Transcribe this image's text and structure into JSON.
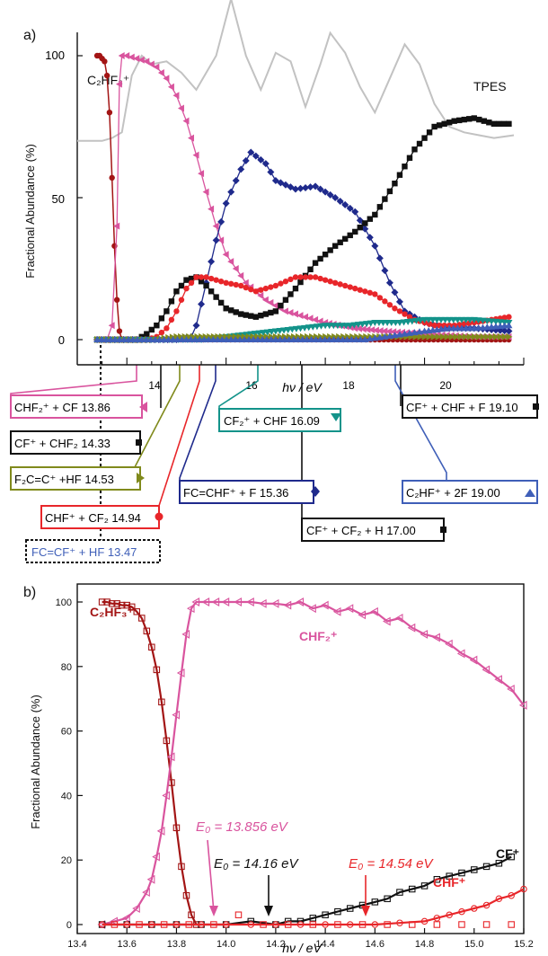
{
  "colors": {
    "c2hf3": "#a31515",
    "chf2": "#d9549e",
    "fc_chf": "#1f2a8c",
    "cf": "#111111",
    "chf": "#e8262a",
    "cf2_chf": "#13938a",
    "f2c": "#808a1c",
    "fccf": "#3f5fb8",
    "tpes": "#c2c2c2"
  },
  "panel_a": {
    "label": "a)",
    "ylabel": "Fractional Abundance  (%)",
    "xlabel": "hν / eV",
    "tpes_label": "TPES",
    "parent_label": "C₂HF₃⁺",
    "y_ticks": [
      "0",
      "50",
      "100"
    ],
    "x_ticks": [
      "14",
      "16",
      "18",
      "20"
    ],
    "channels": [
      {
        "text": "CHF₂⁺ + CF  13.86",
        "marker": "left-triangle",
        "color": "#d9549e"
      },
      {
        "text": "CF⁺ + CHF₂  14.33",
        "marker": "square",
        "color": "#111111"
      },
      {
        "text": "F₂C=C⁺ +HF  14.53",
        "marker": "right-triangle",
        "color": "#808a1c"
      },
      {
        "text": "CHF⁺ + CF₂  14.94",
        "marker": "circle",
        "color": "#e8262a"
      },
      {
        "text": "FC=CF⁺ + HF  13.47",
        "marker": "",
        "color": "#3f5fb8"
      },
      {
        "text": "CF₂⁺ + CHF  16.09",
        "marker": "down-triangle",
        "color": "#13938a"
      },
      {
        "text": "FC=CHF⁺ + F  15.36",
        "marker": "diamond",
        "color": "#1f2a8c"
      },
      {
        "text": "CF⁺ + CF₂ + H  17.00",
        "marker": "square",
        "color": "#111111"
      },
      {
        "text": "CF⁺ + CHF + F  19.10",
        "marker": "square",
        "color": "#111111"
      },
      {
        "text": "C₂HF⁺ + 2F  19.00",
        "marker": "up-triangle",
        "color": "#3f5fb8"
      }
    ]
  },
  "panel_b": {
    "label": "b)",
    "ylabel": "Fractional Abundance  (%)",
    "xlabel": "hν / eV",
    "y_ticks": [
      "0",
      "20",
      "40",
      "60",
      "80",
      "100"
    ],
    "x_ticks": [
      "13.4",
      "13.6",
      "13.8",
      "14.0",
      "14.2",
      "14.4",
      "14.6",
      "14.8",
      "15.0",
      "15.2"
    ],
    "series_labels": {
      "c2hf3": "C₂HF₃⁺",
      "chf2": "CHF₂⁺",
      "cf": "CF⁺",
      "chf": "CHF⁺"
    },
    "e0_chf2": "E₀ = 13.856 eV",
    "e0_cf": "E₀ = 14.16 eV",
    "e0_chf": "E₀ = 14.54 eV"
  },
  "chart_data": [
    {
      "type": "line",
      "xlabel": "hν / eV",
      "ylabel": "Fractional Abundance  (%)",
      "xlim": [
        13.0,
        22.0
      ],
      "ylim": [
        0,
        120
      ],
      "series": [
        {
          "name": "TPES",
          "x": [
            13.0,
            13.5,
            13.7,
            13.9,
            14.1,
            14.3,
            14.5,
            14.8,
            15.1,
            15.4,
            15.8,
            16.1,
            16.4,
            16.7,
            17.0,
            17.3,
            17.6,
            17.9,
            18.1,
            18.4,
            18.7,
            19.0,
            19.3,
            19.6,
            19.9,
            20.2,
            20.5,
            20.8,
            21.1,
            21.4,
            21.8
          ],
          "y": [
            70,
            70,
            71,
            73,
            93,
            100,
            97,
            98,
            94,
            88,
            100,
            120,
            100,
            88,
            101,
            98,
            82,
            97,
            108,
            101,
            89,
            80,
            92,
            104,
            97,
            83,
            75,
            73,
            72,
            71,
            72
          ]
        },
        {
          "name": "C₂HF₃⁺",
          "x": [
            13.4,
            13.45,
            13.5,
            13.55,
            13.6,
            13.65,
            13.7,
            13.75,
            13.8,
            13.85,
            13.9,
            14.0,
            14.5,
            15.0,
            16.0,
            17.0,
            18.0,
            19.0,
            20.0,
            21.0,
            21.7
          ],
          "y": [
            100,
            100,
            99,
            98,
            93,
            80,
            57,
            33,
            14,
            3,
            0,
            0,
            0,
            0,
            0,
            0,
            0,
            0,
            0,
            0,
            0
          ]
        },
        {
          "name": "CHF₂⁺",
          "x": [
            13.4,
            13.6,
            13.7,
            13.8,
            13.85,
            13.9,
            14.0,
            14.2,
            14.4,
            14.6,
            14.8,
            15.0,
            15.2,
            15.4,
            15.6,
            15.8,
            16.0,
            16.4,
            16.8,
            17.2,
            17.6,
            18.0,
            18.6,
            19.2,
            20.0,
            21.0,
            21.7
          ],
          "y": [
            0,
            0,
            5,
            40,
            90,
            100,
            100,
            99,
            98,
            96,
            92,
            86,
            77,
            65,
            52,
            40,
            30,
            20,
            14,
            10,
            8,
            6,
            4,
            3,
            2,
            1,
            1
          ]
        },
        {
          "name": "FC=CHF⁺",
          "x": [
            13.4,
            15.0,
            15.3,
            15.4,
            15.6,
            15.8,
            16.0,
            16.3,
            16.5,
            16.8,
            17.0,
            17.4,
            17.8,
            18.2,
            18.6,
            19.0,
            19.3,
            19.6,
            20.0,
            20.5,
            21.0,
            21.7
          ],
          "y": [
            0,
            0,
            1,
            5,
            20,
            35,
            48,
            60,
            66,
            62,
            56,
            53,
            54,
            50,
            45,
            33,
            20,
            10,
            6,
            4,
            4,
            3
          ]
        },
        {
          "name": "CF⁺",
          "x": [
            13.4,
            14.2,
            14.4,
            14.6,
            14.8,
            15.0,
            15.2,
            15.4,
            15.6,
            15.8,
            16.0,
            16.3,
            16.6,
            17.0,
            17.4,
            17.8,
            18.2,
            18.6,
            19.0,
            19.4,
            19.8,
            20.2,
            20.6,
            21.0,
            21.4,
            21.7
          ],
          "y": [
            0,
            0,
            2,
            5,
            10,
            17,
            21,
            22,
            19,
            15,
            11,
            9,
            8,
            10,
            18,
            27,
            33,
            38,
            44,
            55,
            67,
            75,
            77,
            78,
            76,
            76
          ]
        },
        {
          "name": "CHF⁺",
          "x": [
            13.4,
            14.4,
            14.6,
            14.8,
            15.0,
            15.2,
            15.4,
            15.6,
            15.8,
            16.0,
            16.3,
            16.6,
            17.0,
            17.4,
            17.8,
            18.2,
            18.6,
            19.0,
            19.4,
            19.8,
            20.2,
            20.6,
            21.0,
            21.7
          ],
          "y": [
            0,
            0,
            1,
            4,
            10,
            18,
            22,
            22,
            21,
            20,
            19,
            17,
            19,
            22,
            22,
            20,
            18,
            16,
            11,
            7,
            5,
            5,
            6,
            8
          ]
        },
        {
          "name": "CF₂⁺",
          "x": [
            13.4,
            15.5,
            16.0,
            16.5,
            17.0,
            17.5,
            18.0,
            18.5,
            19.0,
            19.5,
            20.0,
            20.5,
            21.0,
            21.7
          ],
          "y": [
            0,
            0,
            1,
            2,
            3,
            4,
            5,
            5,
            6,
            6,
            7,
            7,
            7,
            6
          ]
        },
        {
          "name": "F₂C=C⁺",
          "x": [
            13.4,
            14.5,
            15.0,
            15.5,
            16.0,
            17.0,
            18.0,
            19.0,
            20.0,
            21.0,
            21.7
          ],
          "y": [
            0,
            0,
            1,
            1,
            1,
            1,
            1,
            1,
            1,
            1,
            1
          ]
        },
        {
          "name": "C₂HF⁺",
          "x": [
            13.4,
            18.8,
            19.2,
            19.6,
            20.0,
            20.5,
            21.0,
            21.7
          ],
          "y": [
            0,
            0,
            1,
            2,
            3,
            4,
            4,
            5
          ]
        }
      ]
    },
    {
      "type": "scatter",
      "xlabel": "hν / eV",
      "ylabel": "Fractional Abundance  (%)",
      "xlim": [
        13.4,
        15.2
      ],
      "ylim": [
        0,
        105
      ],
      "series": [
        {
          "name": "C₂HF₃⁺",
          "x": [
            13.5,
            13.52,
            13.54,
            13.56,
            13.58,
            13.6,
            13.62,
            13.64,
            13.66,
            13.68,
            13.7,
            13.72,
            13.74,
            13.76,
            13.78,
            13.8,
            13.82,
            13.84,
            13.86,
            13.88
          ],
          "y": [
            100,
            100,
            99.5,
            99.5,
            99,
            99,
            98.5,
            97,
            95,
            91,
            86,
            79,
            69,
            57,
            44,
            30,
            18,
            9,
            3,
            0
          ]
        },
        {
          "name": "CHF₂⁺",
          "x": [
            13.5,
            13.55,
            13.6,
            13.64,
            13.68,
            13.7,
            13.72,
            13.74,
            13.76,
            13.78,
            13.8,
            13.82,
            13.84,
            13.86,
            13.88,
            13.92,
            13.96,
            14.0,
            14.05,
            14.1,
            14.15,
            14.2,
            14.25,
            14.3,
            14.35,
            14.4,
            14.45,
            14.5,
            14.55,
            14.6,
            14.65,
            14.7,
            14.75,
            14.8,
            14.85,
            14.9,
            14.95,
            15.0,
            15.05,
            15.1,
            15.15,
            15.2
          ],
          "y": [
            0,
            1,
            2,
            5,
            10,
            14,
            21,
            29,
            40,
            52,
            65,
            78,
            90,
            98,
            100,
            100,
            100,
            100,
            100,
            100,
            99.5,
            99.5,
            99,
            100,
            98,
            99,
            97,
            98,
            96,
            97,
            94,
            95,
            92,
            90,
            89,
            87,
            84,
            82,
            79,
            76,
            73,
            68
          ]
        },
        {
          "name": "CF⁺",
          "x": [
            13.5,
            13.6,
            13.7,
            13.8,
            13.9,
            14.0,
            14.1,
            14.2,
            14.25,
            14.3,
            14.35,
            14.4,
            14.45,
            14.5,
            14.55,
            14.6,
            14.65,
            14.7,
            14.75,
            14.8,
            14.85,
            14.9,
            14.95,
            15.0,
            15.05,
            15.1,
            15.15
          ],
          "y": [
            0,
            0,
            0,
            0,
            0,
            0,
            1,
            0,
            1,
            1,
            2,
            3,
            4,
            5,
            6,
            7,
            8,
            10,
            11,
            12,
            14,
            15,
            16,
            17,
            18,
            19,
            21
          ]
        },
        {
          "name": "CHF⁺",
          "x": [
            13.5,
            13.6,
            13.7,
            13.8,
            13.9,
            14.0,
            14.1,
            14.2,
            14.3,
            14.4,
            14.5,
            14.6,
            14.7,
            14.8,
            14.85,
            14.9,
            14.95,
            15.0,
            15.05,
            15.1,
            15.15,
            15.2
          ],
          "y": [
            0,
            0,
            0,
            0,
            0,
            0,
            0,
            0,
            0,
            0,
            0,
            0,
            0.5,
            1,
            2,
            3,
            4,
            5,
            6,
            8,
            9,
            11
          ]
        },
        {
          "name": "",
          "x": [
            13.55,
            13.65,
            13.75,
            13.85,
            13.95,
            14.05,
            14.15,
            14.25,
            14.35,
            14.45,
            14.55,
            14.65,
            14.75,
            14.85,
            14.95,
            15.05,
            15.15
          ],
          "y": [
            0,
            0,
            0,
            0,
            0,
            3,
            0,
            0,
            0,
            0,
            0,
            0,
            0,
            0,
            0,
            0,
            0
          ]
        }
      ]
    }
  ]
}
